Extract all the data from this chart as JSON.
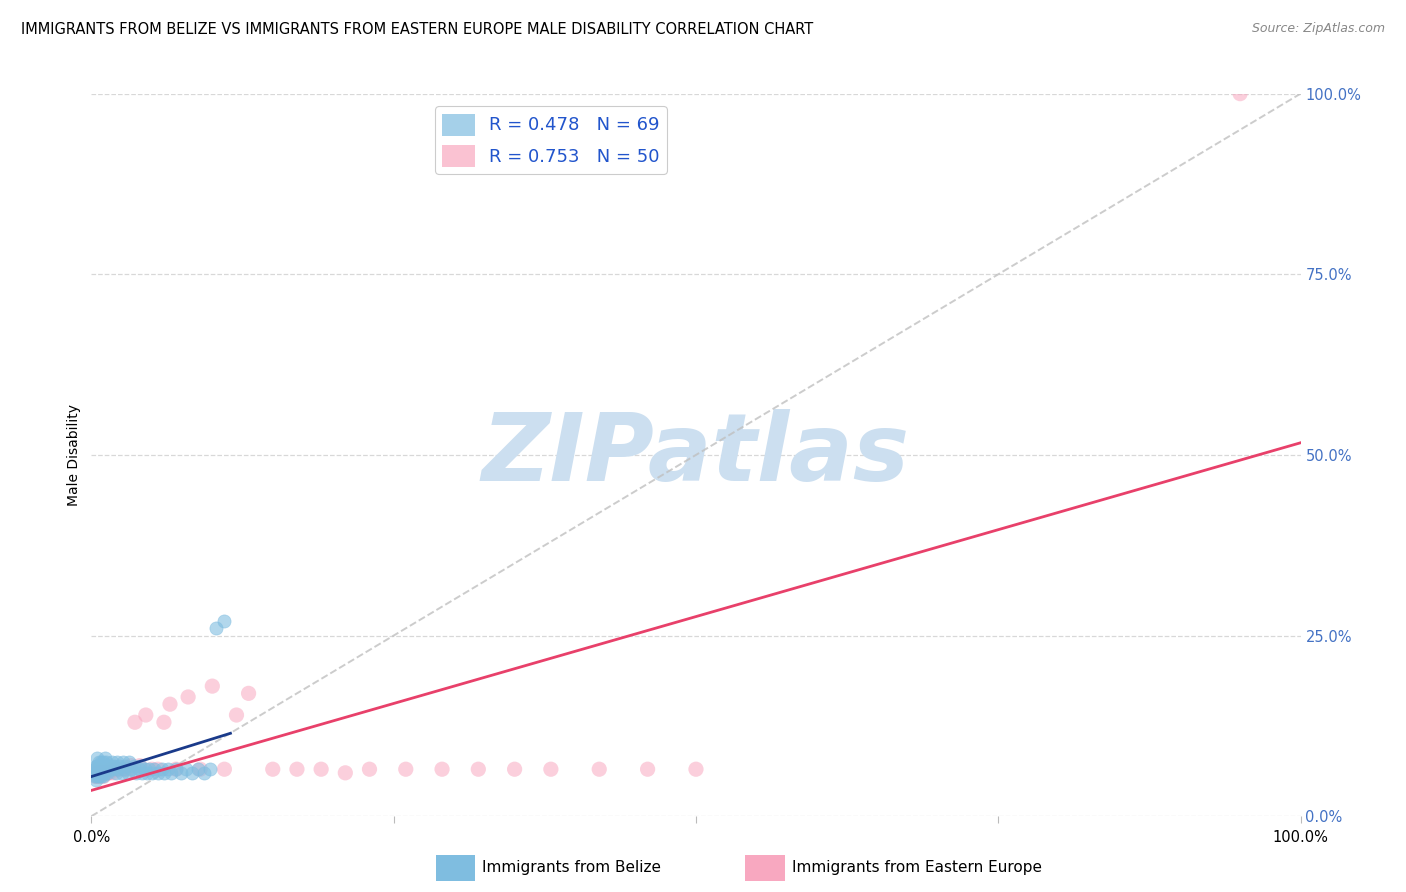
{
  "title": "IMMIGRANTS FROM BELIZE VS IMMIGRANTS FROM EASTERN EUROPE MALE DISABILITY CORRELATION CHART",
  "source": "Source: ZipAtlas.com",
  "ylabel": "Male Disability",
  "xlim": [
    0,
    1.0
  ],
  "ylim": [
    0,
    1.0
  ],
  "xtick_vals": [
    0.0,
    0.25,
    0.5,
    0.75,
    1.0
  ],
  "xtick_labels_bottom": [
    "0.0%",
    "",
    "",
    "",
    "100.0%"
  ],
  "ytick_vals": [
    0.0,
    0.25,
    0.5,
    0.75,
    1.0
  ],
  "right_ytick_labels": [
    "0.0%",
    "25.0%",
    "50.0%",
    "75.0%",
    "100.0%"
  ],
  "belize_color": "#7fbde0",
  "eastern_color": "#f8a8c0",
  "belize_R": 0.478,
  "belize_N": 69,
  "eastern_R": 0.753,
  "eastern_N": 50,
  "legend_label_belize": "Immigrants from Belize",
  "legend_label_eastern": "Immigrants from Eastern Europe",
  "background_color": "#ffffff",
  "grid_color": "#d8d8d8",
  "watermark": "ZIPatlas",
  "watermark_color": "#ccdff0",
  "title_fontsize": 10.5,
  "axis_label_fontsize": 10,
  "tick_fontsize": 10.5,
  "right_tick_color": "#4472c4",
  "legend_text_color": "#2255cc",
  "regression_blue": "#1a3a8a",
  "regression_pink": "#e8406a",
  "diag_color": "#c0c0c0",
  "belize_x": [
    0.003,
    0.003,
    0.004,
    0.004,
    0.004,
    0.005,
    0.005,
    0.005,
    0.005,
    0.005,
    0.006,
    0.006,
    0.006,
    0.007,
    0.007,
    0.008,
    0.008,
    0.008,
    0.009,
    0.009,
    0.01,
    0.01,
    0.01,
    0.011,
    0.011,
    0.012,
    0.012,
    0.013,
    0.014,
    0.015,
    0.016,
    0.017,
    0.018,
    0.019,
    0.02,
    0.021,
    0.022,
    0.023,
    0.025,
    0.026,
    0.027,
    0.028,
    0.03,
    0.031,
    0.033,
    0.035,
    0.037,
    0.039,
    0.04,
    0.042,
    0.044,
    0.046,
    0.048,
    0.05,
    0.052,
    0.055,
    0.058,
    0.06,
    0.063,
    0.066,
    0.07,
    0.074,
    0.078,
    0.083,
    0.088,
    0.093,
    0.098,
    0.103,
    0.11
  ],
  "belize_y": [
    0.055,
    0.065,
    0.06,
    0.07,
    0.05,
    0.055,
    0.06,
    0.065,
    0.07,
    0.08,
    0.055,
    0.065,
    0.075,
    0.06,
    0.07,
    0.055,
    0.065,
    0.075,
    0.06,
    0.07,
    0.055,
    0.065,
    0.075,
    0.06,
    0.08,
    0.065,
    0.075,
    0.06,
    0.07,
    0.065,
    0.07,
    0.075,
    0.065,
    0.07,
    0.06,
    0.075,
    0.065,
    0.07,
    0.06,
    0.075,
    0.065,
    0.07,
    0.06,
    0.075,
    0.065,
    0.07,
    0.06,
    0.065,
    0.07,
    0.06,
    0.065,
    0.06,
    0.065,
    0.06,
    0.065,
    0.06,
    0.065,
    0.06,
    0.065,
    0.06,
    0.065,
    0.06,
    0.065,
    0.06,
    0.065,
    0.06,
    0.065,
    0.26,
    0.27
  ],
  "eastern_x": [
    0.003,
    0.004,
    0.005,
    0.005,
    0.006,
    0.007,
    0.008,
    0.009,
    0.01,
    0.011,
    0.012,
    0.013,
    0.014,
    0.015,
    0.016,
    0.018,
    0.02,
    0.022,
    0.025,
    0.028,
    0.03,
    0.033,
    0.036,
    0.04,
    0.045,
    0.05,
    0.055,
    0.06,
    0.065,
    0.07,
    0.08,
    0.09,
    0.1,
    0.11,
    0.12,
    0.13,
    0.15,
    0.17,
    0.19,
    0.21,
    0.23,
    0.26,
    0.29,
    0.32,
    0.35,
    0.38,
    0.42,
    0.46,
    0.5,
    0.95
  ],
  "eastern_y": [
    0.055,
    0.06,
    0.055,
    0.065,
    0.06,
    0.055,
    0.06,
    0.06,
    0.055,
    0.06,
    0.06,
    0.06,
    0.06,
    0.06,
    0.065,
    0.06,
    0.065,
    0.065,
    0.065,
    0.065,
    0.065,
    0.07,
    0.13,
    0.07,
    0.14,
    0.065,
    0.065,
    0.13,
    0.155,
    0.065,
    0.165,
    0.065,
    0.18,
    0.065,
    0.14,
    0.17,
    0.065,
    0.065,
    0.065,
    0.06,
    0.065,
    0.065,
    0.065,
    0.065,
    0.065,
    0.065,
    0.065,
    0.065,
    0.065,
    1.0
  ]
}
